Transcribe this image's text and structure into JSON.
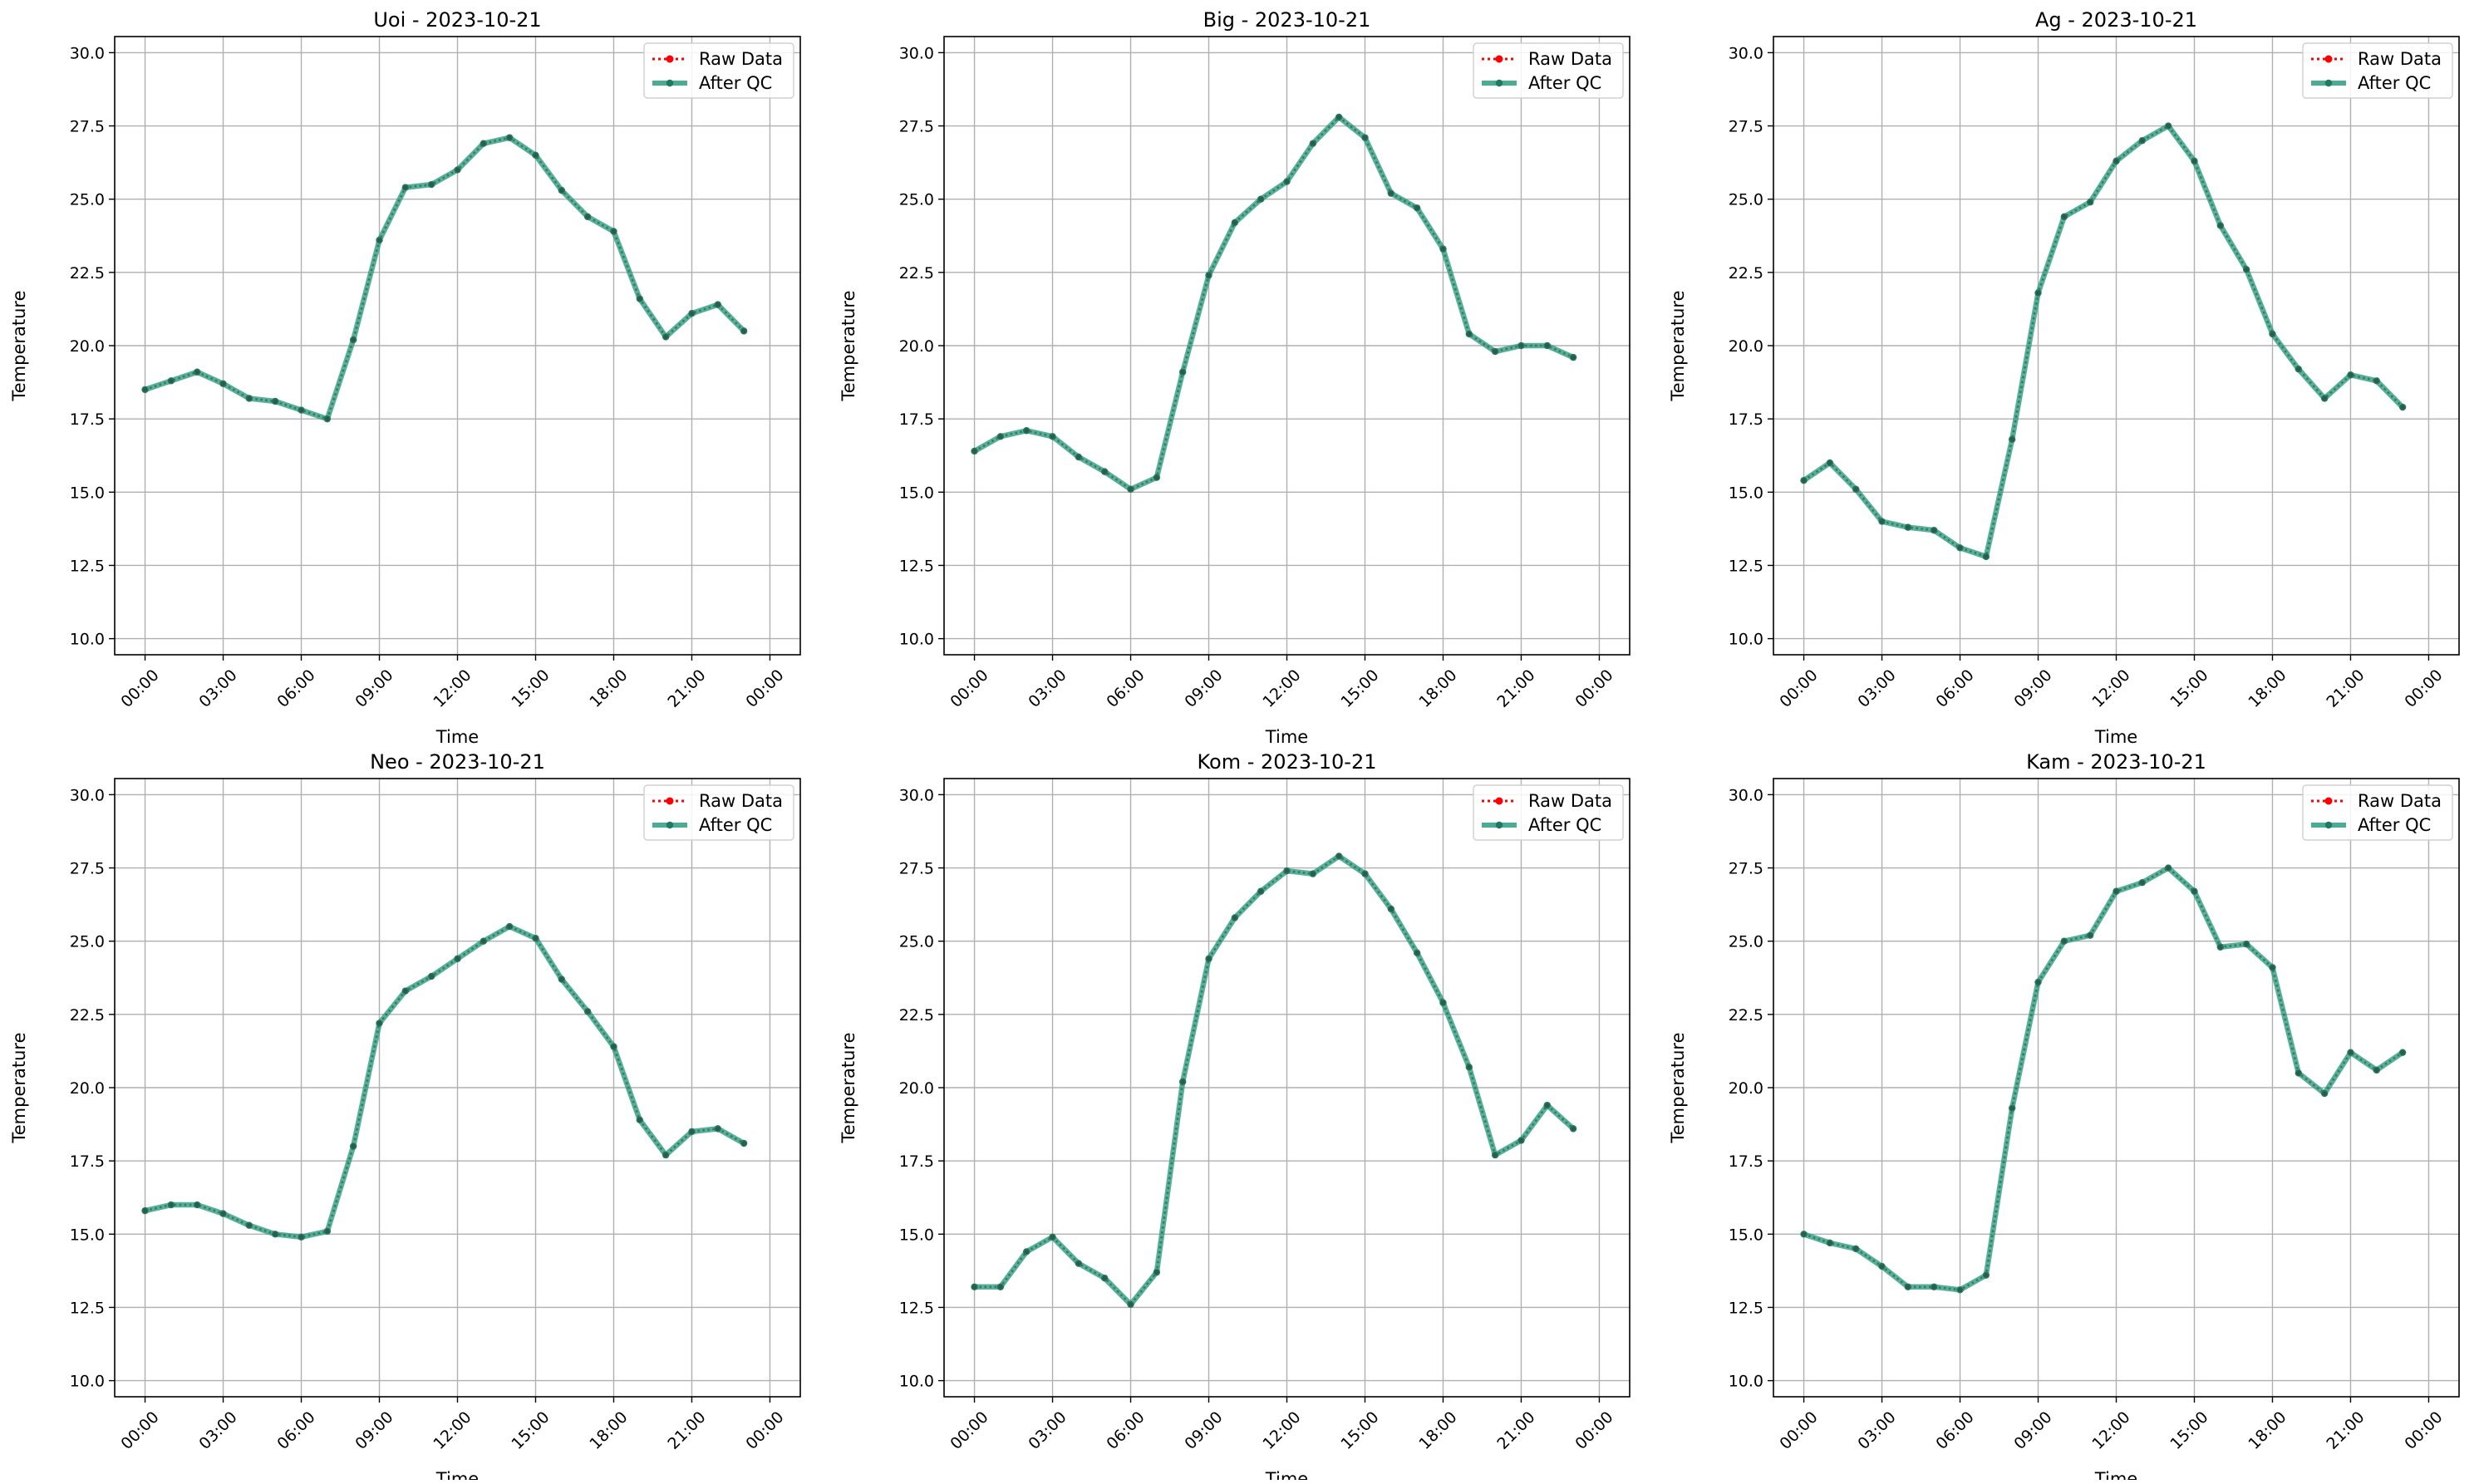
{
  "chart_data": [
    {
      "type": "line",
      "title": "Uoi - 2023-10-21",
      "xlabel": "Time",
      "ylabel": "Temperature",
      "ylim": [
        10.0,
        30.0
      ],
      "xlim": [
        "00:00",
        "24:00"
      ],
      "yticks": [
        "10.0",
        "12.5",
        "15.0",
        "17.5",
        "20.0",
        "22.5",
        "25.0",
        "27.5",
        "30.0"
      ],
      "xticks": [
        "00:00",
        "03:00",
        "06:00",
        "09:00",
        "12:00",
        "15:00",
        "18:00",
        "21:00",
        "00:00"
      ],
      "grid": true,
      "legend_position": "top-right",
      "x": [
        "00:00",
        "01:00",
        "02:00",
        "03:00",
        "04:00",
        "05:00",
        "06:00",
        "07:00",
        "08:00",
        "09:00",
        "10:00",
        "11:00",
        "12:00",
        "13:00",
        "14:00",
        "15:00",
        "16:00",
        "17:00",
        "18:00",
        "19:00",
        "20:00",
        "21:00",
        "22:00",
        "23:00"
      ],
      "series": [
        {
          "name": "Raw Data",
          "color": "#ff0000",
          "style": "dotted",
          "values": [
            18.5,
            18.8,
            19.1,
            18.7,
            18.2,
            18.1,
            17.8,
            17.5,
            20.2,
            23.6,
            25.4,
            25.5,
            26.0,
            26.9,
            27.1,
            26.5,
            25.3,
            24.4,
            23.9,
            21.6,
            20.3,
            21.1,
            21.4,
            20.5
          ]
        },
        {
          "name": "After QC",
          "color": "#2a9d7f",
          "style": "solid",
          "values": [
            18.5,
            18.8,
            19.1,
            18.7,
            18.2,
            18.1,
            17.8,
            17.5,
            20.2,
            23.6,
            25.4,
            25.5,
            26.0,
            26.9,
            27.1,
            26.5,
            25.3,
            24.4,
            23.9,
            21.6,
            20.3,
            21.1,
            21.4,
            20.5
          ]
        }
      ]
    },
    {
      "type": "line",
      "title": "Big - 2023-10-21",
      "xlabel": "Time",
      "ylabel": "Temperature",
      "ylim": [
        10.0,
        30.0
      ],
      "xlim": [
        "00:00",
        "24:00"
      ],
      "yticks": [
        "10.0",
        "12.5",
        "15.0",
        "17.5",
        "20.0",
        "22.5",
        "25.0",
        "27.5",
        "30.0"
      ],
      "xticks": [
        "00:00",
        "03:00",
        "06:00",
        "09:00",
        "12:00",
        "15:00",
        "18:00",
        "21:00",
        "00:00"
      ],
      "grid": true,
      "legend_position": "top-right",
      "x": [
        "00:00",
        "01:00",
        "02:00",
        "03:00",
        "04:00",
        "05:00",
        "06:00",
        "07:00",
        "08:00",
        "09:00",
        "10:00",
        "11:00",
        "12:00",
        "13:00",
        "14:00",
        "15:00",
        "16:00",
        "17:00",
        "18:00",
        "19:00",
        "20:00",
        "21:00",
        "22:00",
        "23:00"
      ],
      "series": [
        {
          "name": "Raw Data",
          "color": "#ff0000",
          "style": "dotted",
          "values": [
            16.4,
            16.9,
            17.1,
            16.9,
            16.2,
            15.7,
            15.1,
            15.5,
            19.1,
            22.4,
            24.2,
            25.0,
            25.6,
            26.9,
            27.8,
            27.1,
            25.2,
            24.7,
            23.3,
            20.4,
            19.8,
            20.0,
            20.0,
            19.6
          ]
        },
        {
          "name": "After QC",
          "color": "#2a9d7f",
          "style": "solid",
          "values": [
            16.4,
            16.9,
            17.1,
            16.9,
            16.2,
            15.7,
            15.1,
            15.5,
            19.1,
            22.4,
            24.2,
            25.0,
            25.6,
            26.9,
            27.8,
            27.1,
            25.2,
            24.7,
            23.3,
            20.4,
            19.8,
            20.0,
            20.0,
            19.6
          ]
        }
      ]
    },
    {
      "type": "line",
      "title": "Ag - 2023-10-21",
      "xlabel": "Time",
      "ylabel": "Temperature",
      "ylim": [
        10.0,
        30.0
      ],
      "xlim": [
        "00:00",
        "24:00"
      ],
      "yticks": [
        "10.0",
        "12.5",
        "15.0",
        "17.5",
        "20.0",
        "22.5",
        "25.0",
        "27.5",
        "30.0"
      ],
      "xticks": [
        "00:00",
        "03:00",
        "06:00",
        "09:00",
        "12:00",
        "15:00",
        "18:00",
        "21:00",
        "00:00"
      ],
      "grid": true,
      "legend_position": "top-right",
      "x": [
        "00:00",
        "01:00",
        "02:00",
        "03:00",
        "04:00",
        "05:00",
        "06:00",
        "07:00",
        "08:00",
        "09:00",
        "10:00",
        "11:00",
        "12:00",
        "13:00",
        "14:00",
        "15:00",
        "16:00",
        "17:00",
        "18:00",
        "19:00",
        "20:00",
        "21:00",
        "22:00",
        "23:00"
      ],
      "series": [
        {
          "name": "Raw Data",
          "color": "#ff0000",
          "style": "dotted",
          "values": [
            15.4,
            16.0,
            15.1,
            14.0,
            13.8,
            13.7,
            13.1,
            12.8,
            16.8,
            21.8,
            24.4,
            24.9,
            26.3,
            27.0,
            27.5,
            26.3,
            24.1,
            22.6,
            20.4,
            19.2,
            18.2,
            19.0,
            18.8,
            17.9
          ]
        },
        {
          "name": "After QC",
          "color": "#2a9d7f",
          "style": "solid",
          "values": [
            15.4,
            16.0,
            15.1,
            14.0,
            13.8,
            13.7,
            13.1,
            12.8,
            16.8,
            21.8,
            24.4,
            24.9,
            26.3,
            27.0,
            27.5,
            26.3,
            24.1,
            22.6,
            20.4,
            19.2,
            18.2,
            19.0,
            18.8,
            17.9
          ]
        }
      ]
    },
    {
      "type": "line",
      "title": "Neo - 2023-10-21",
      "xlabel": "Time",
      "ylabel": "Temperature",
      "ylim": [
        10.0,
        30.0
      ],
      "xlim": [
        "00:00",
        "24:00"
      ],
      "yticks": [
        "10.0",
        "12.5",
        "15.0",
        "17.5",
        "20.0",
        "22.5",
        "25.0",
        "27.5",
        "30.0"
      ],
      "xticks": [
        "00:00",
        "03:00",
        "06:00",
        "09:00",
        "12:00",
        "15:00",
        "18:00",
        "21:00",
        "00:00"
      ],
      "grid": true,
      "legend_position": "top-right",
      "x": [
        "00:00",
        "01:00",
        "02:00",
        "03:00",
        "04:00",
        "05:00",
        "06:00",
        "07:00",
        "08:00",
        "09:00",
        "10:00",
        "11:00",
        "12:00",
        "13:00",
        "14:00",
        "15:00",
        "16:00",
        "17:00",
        "18:00",
        "19:00",
        "20:00",
        "21:00",
        "22:00",
        "23:00"
      ],
      "series": [
        {
          "name": "Raw Data",
          "color": "#ff0000",
          "style": "dotted",
          "values": [
            15.8,
            16.0,
            16.0,
            15.7,
            15.3,
            15.0,
            14.9,
            15.1,
            18.0,
            22.2,
            23.3,
            23.8,
            24.4,
            25.0,
            25.5,
            25.1,
            23.7,
            22.6,
            21.4,
            18.9,
            17.7,
            18.5,
            18.6,
            18.1
          ]
        },
        {
          "name": "After QC",
          "color": "#2a9d7f",
          "style": "solid",
          "values": [
            15.8,
            16.0,
            16.0,
            15.7,
            15.3,
            15.0,
            14.9,
            15.1,
            18.0,
            22.2,
            23.3,
            23.8,
            24.4,
            25.0,
            25.5,
            25.1,
            23.7,
            22.6,
            21.4,
            18.9,
            17.7,
            18.5,
            18.6,
            18.1
          ]
        }
      ]
    },
    {
      "type": "line",
      "title": "Kom - 2023-10-21",
      "xlabel": "Time",
      "ylabel": "Temperature",
      "ylim": [
        10.0,
        30.0
      ],
      "xlim": [
        "00:00",
        "24:00"
      ],
      "yticks": [
        "10.0",
        "12.5",
        "15.0",
        "17.5",
        "20.0",
        "22.5",
        "25.0",
        "27.5",
        "30.0"
      ],
      "xticks": [
        "00:00",
        "03:00",
        "06:00",
        "09:00",
        "12:00",
        "15:00",
        "18:00",
        "21:00",
        "00:00"
      ],
      "grid": true,
      "legend_position": "top-right",
      "x": [
        "00:00",
        "01:00",
        "02:00",
        "03:00",
        "04:00",
        "05:00",
        "06:00",
        "07:00",
        "08:00",
        "09:00",
        "10:00",
        "11:00",
        "12:00",
        "13:00",
        "14:00",
        "15:00",
        "16:00",
        "17:00",
        "18:00",
        "19:00",
        "20:00",
        "21:00",
        "22:00",
        "23:00"
      ],
      "series": [
        {
          "name": "Raw Data",
          "color": "#ff0000",
          "style": "dotted",
          "values": [
            13.2,
            13.2,
            14.4,
            14.9,
            14.0,
            13.5,
            12.6,
            13.7,
            20.2,
            24.4,
            25.8,
            26.7,
            27.4,
            27.3,
            27.9,
            27.3,
            26.1,
            24.6,
            22.9,
            20.7,
            17.7,
            18.2,
            19.4,
            18.6
          ]
        },
        {
          "name": "After QC",
          "color": "#2a9d7f",
          "style": "solid",
          "values": [
            13.2,
            13.2,
            14.4,
            14.9,
            14.0,
            13.5,
            12.6,
            13.7,
            20.2,
            24.4,
            25.8,
            26.7,
            27.4,
            27.3,
            27.9,
            27.3,
            26.1,
            24.6,
            22.9,
            20.7,
            17.7,
            18.2,
            19.4,
            18.6
          ]
        }
      ]
    },
    {
      "type": "line",
      "title": "Kam - 2023-10-21",
      "xlabel": "Time",
      "ylabel": "Temperature",
      "ylim": [
        10.0,
        30.0
      ],
      "xlim": [
        "00:00",
        "24:00"
      ],
      "yticks": [
        "10.0",
        "12.5",
        "15.0",
        "17.5",
        "20.0",
        "22.5",
        "25.0",
        "27.5",
        "30.0"
      ],
      "xticks": [
        "00:00",
        "03:00",
        "06:00",
        "09:00",
        "12:00",
        "15:00",
        "18:00",
        "21:00",
        "00:00"
      ],
      "grid": true,
      "legend_position": "top-right",
      "x": [
        "00:00",
        "01:00",
        "02:00",
        "03:00",
        "04:00",
        "05:00",
        "06:00",
        "07:00",
        "08:00",
        "09:00",
        "10:00",
        "11:00",
        "12:00",
        "13:00",
        "14:00",
        "15:00",
        "16:00",
        "17:00",
        "18:00",
        "19:00",
        "20:00",
        "21:00",
        "22:00",
        "23:00"
      ],
      "series": [
        {
          "name": "Raw Data",
          "color": "#ff0000",
          "style": "dotted",
          "values": [
            15.0,
            14.7,
            14.5,
            13.9,
            13.2,
            13.2,
            13.1,
            13.6,
            19.3,
            23.6,
            25.0,
            25.2,
            26.7,
            27.0,
            27.5,
            26.7,
            24.8,
            24.9,
            24.1,
            20.5,
            19.8,
            21.2,
            20.6,
            21.2
          ]
        },
        {
          "name": "After QC",
          "color": "#2a9d7f",
          "style": "solid",
          "values": [
            15.0,
            14.7,
            14.5,
            13.9,
            13.2,
            13.2,
            13.1,
            13.6,
            19.3,
            23.6,
            25.0,
            25.2,
            26.7,
            27.0,
            27.5,
            26.7,
            24.8,
            24.9,
            24.1,
            20.5,
            19.8,
            21.2,
            20.6,
            21.2
          ]
        }
      ]
    }
  ]
}
